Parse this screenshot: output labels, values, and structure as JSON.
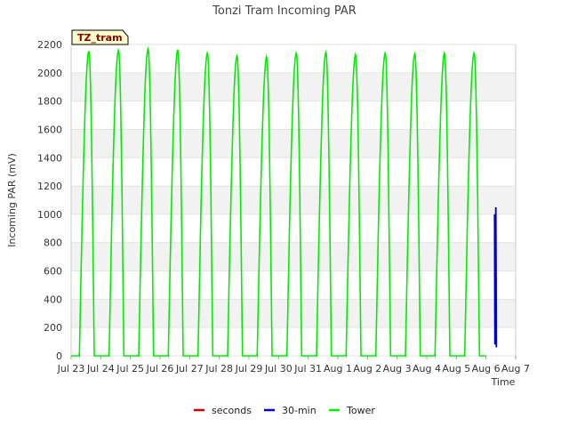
{
  "chart_data": {
    "type": "line",
    "title": "Tonzi Tram Incoming PAR",
    "xlabel": "Time",
    "ylabel": "Incoming PAR (mV)",
    "ylim": [
      0,
      2200
    ],
    "yticks": [
      0,
      200,
      400,
      600,
      800,
      1000,
      1200,
      1400,
      1600,
      1800,
      2000,
      2200
    ],
    "xlim": [
      0,
      15
    ],
    "xtick_labels": [
      "Jul 23",
      "Jul 24",
      "Jul 25",
      "Jul 26",
      "Jul 27",
      "Jul 28",
      "Jul 29",
      "Jul 30",
      "Jul 31",
      "Aug 1",
      "Aug 2",
      "Aug 3",
      "Aug 4",
      "Aug 5",
      "Aug 6",
      "Aug 7"
    ],
    "badge": "TZ_tram",
    "grid": "horizontal bands",
    "legend": "bottom-center",
    "series": [
      {
        "name": "seconds",
        "color": "#cc0000",
        "points": []
      },
      {
        "name": "30-min",
        "color": "#0000cc",
        "points": [
          [
            14.29,
            1000
          ],
          [
            14.3,
            80
          ],
          [
            14.33,
            1050
          ],
          [
            14.35,
            60
          ]
        ]
      },
      {
        "name": "Tower",
        "color": "#00ee00",
        "daily_peaks": [
          {
            "day": 0,
            "peak": 2155
          },
          {
            "day": 1,
            "peak": 2160
          },
          {
            "day": 2,
            "peak": 2170
          },
          {
            "day": 3,
            "peak": 2165
          },
          {
            "day": 4,
            "peak": 2140
          },
          {
            "day": 5,
            "peak": 2120
          },
          {
            "day": 6,
            "peak": 2115
          },
          {
            "day": 7,
            "peak": 2140
          },
          {
            "day": 8,
            "peak": 2145
          },
          {
            "day": 9,
            "peak": 2130
          },
          {
            "day": 10,
            "peak": 2140
          },
          {
            "day": 11,
            "peak": 2135
          },
          {
            "day": 12,
            "peak": 2140
          },
          {
            "day": 13,
            "peak": 2140
          }
        ],
        "day_start_fraction": 0.28,
        "day_end_fraction": 0.78,
        "peak_fraction": 0.6
      }
    ]
  }
}
